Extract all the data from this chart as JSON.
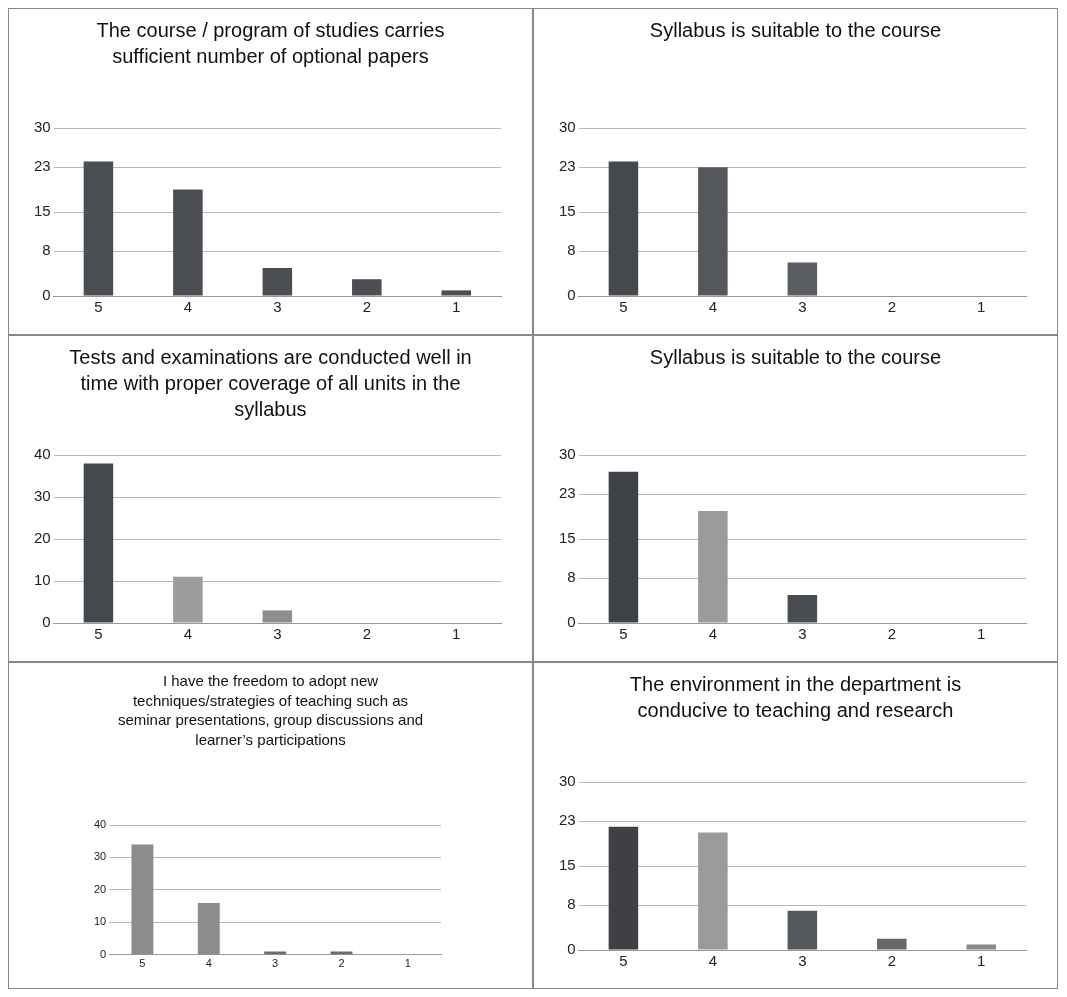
{
  "chart_data": [
    {
      "type": "bar",
      "title": "The course / program of studies carries sufficient number of optional papers",
      "categories": [
        "5",
        "4",
        "3",
        "2",
        "1"
      ],
      "values": [
        24,
        19,
        5,
        3,
        1
      ],
      "colors": [
        "#4b4e52",
        "#4b4e52",
        "#4b4e52",
        "#4b4e52",
        "#4b4e52"
      ],
      "ylim": [
        0,
        30
      ],
      "yticks": [
        0,
        8,
        15,
        23,
        30
      ],
      "grid": "y",
      "legend": false
    },
    {
      "type": "bar",
      "title": "Syllabus is suitable to the course",
      "categories": [
        "5",
        "4",
        "3",
        "2",
        "1"
      ],
      "values": [
        24,
        23,
        6,
        0,
        0
      ],
      "colors": [
        "#45484c",
        "#54575b",
        "#5a5d61",
        "#5a5d61",
        "#5a5d61"
      ],
      "ylim": [
        0,
        30
      ],
      "yticks": [
        0,
        8,
        15,
        23,
        30
      ],
      "grid": "y",
      "legend": false
    },
    {
      "type": "bar",
      "title": "Tests and examinations are conducted well in time with proper coverage of all units in the syllabus",
      "categories": [
        "5",
        "4",
        "3",
        "2",
        "1"
      ],
      "values": [
        38,
        11,
        3,
        0,
        0
      ],
      "colors": [
        "#45484c",
        "#9a9c9e",
        "#8c8e90",
        "#8c8e90",
        "#8c8e90"
      ],
      "ylim": [
        0,
        40
      ],
      "yticks": [
        0,
        10,
        20,
        30,
        40
      ],
      "grid": "y",
      "legend": false
    },
    {
      "type": "bar",
      "title": "Syllabus is suitable to the course",
      "categories": [
        "5",
        "4",
        "3",
        "2",
        "1"
      ],
      "values": [
        27,
        20,
        5,
        0,
        0
      ],
      "colors": [
        "#3e4146",
        "#999b9d",
        "#4a4d50",
        "#4a4d50",
        "#4a4d50"
      ],
      "ylim": [
        0,
        30
      ],
      "yticks": [
        0,
        8,
        15,
        23,
        30
      ],
      "grid": "y",
      "legend": false
    },
    {
      "type": "bar",
      "title": "I have the freedom to adopt new techniques/strategies of teaching such as seminar presentations, group discussions and learner’s participations",
      "categories": [
        "5",
        "4",
        "3",
        "2",
        "1"
      ],
      "values": [
        34,
        16,
        1,
        1,
        0
      ],
      "colors": [
        "#8a8c8e",
        "#8a8c8e",
        "#6a6c6e",
        "#6a6c6e",
        "#6a6c6e"
      ],
      "ylim": [
        0,
        40
      ],
      "yticks": [
        0,
        10,
        20,
        30,
        40
      ],
      "grid": "y",
      "legend": false
    },
    {
      "type": "bar",
      "title": "The environment in the department is conducive to teaching and research",
      "categories": [
        "5",
        "4",
        "3",
        "2",
        "1"
      ],
      "values": [
        22,
        21,
        7,
        2,
        1
      ],
      "colors": [
        "#3e4044",
        "#999b9d",
        "#55585c",
        "#66696c",
        "#888a8c"
      ],
      "ylim": [
        0,
        30
      ],
      "yticks": [
        0,
        8,
        15,
        23,
        30
      ],
      "grid": "y",
      "legend": false
    }
  ]
}
